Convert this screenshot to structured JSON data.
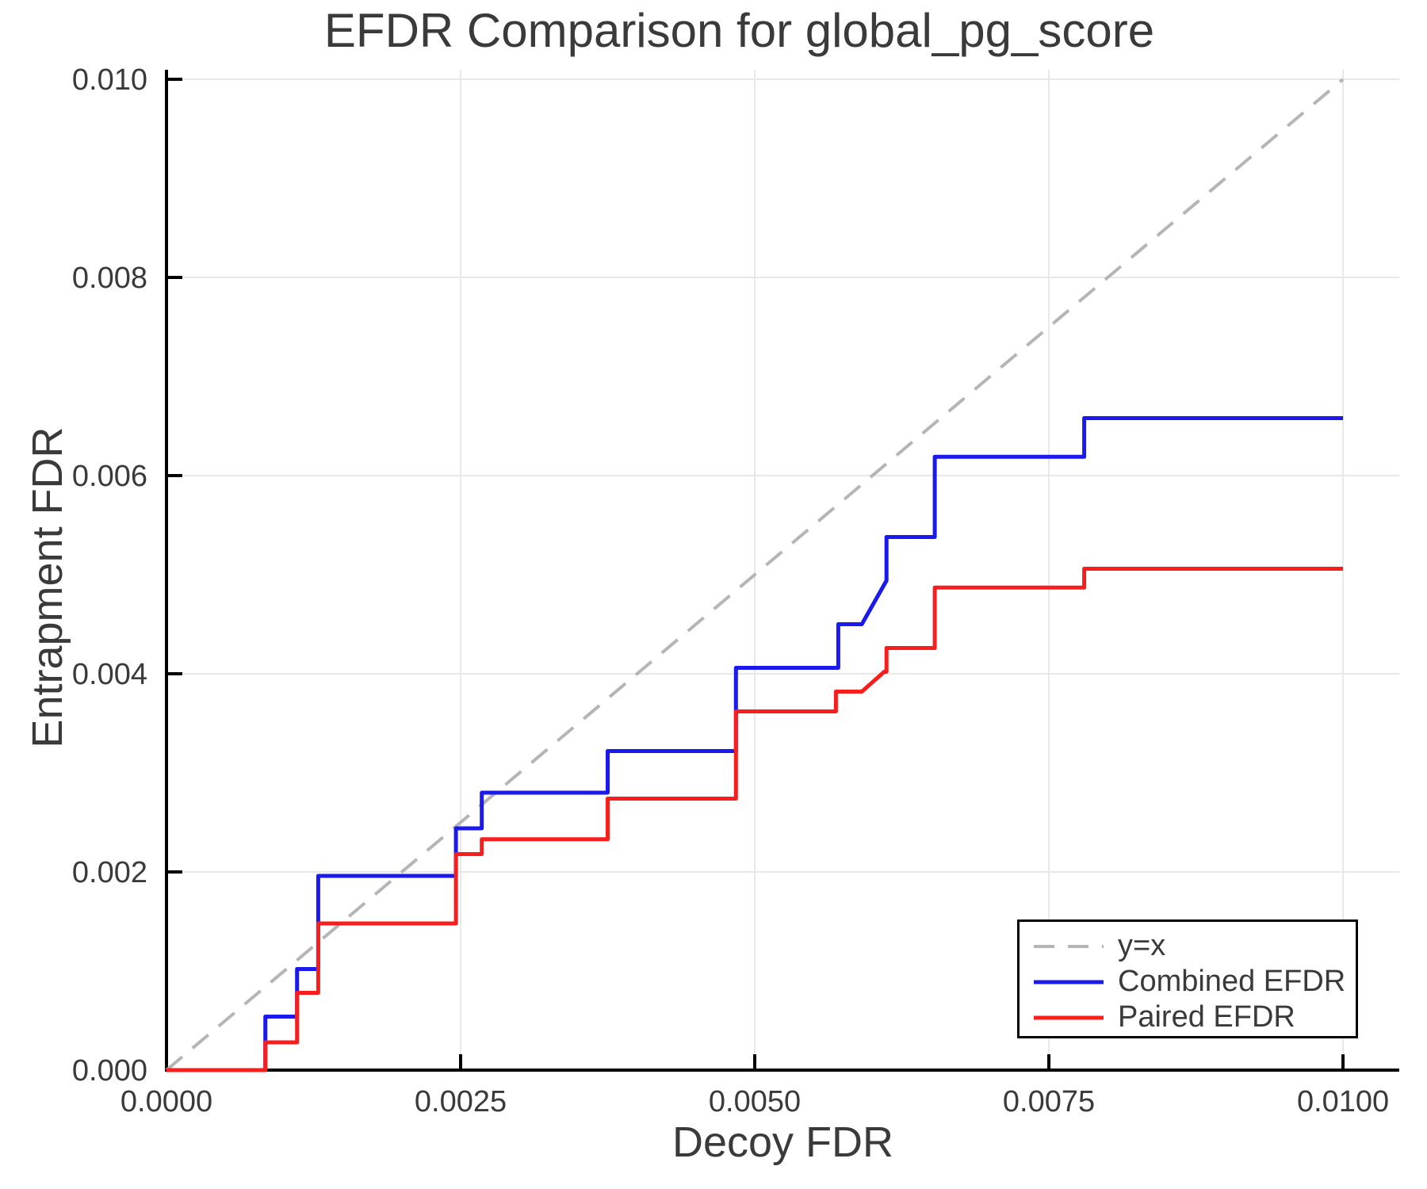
{
  "chart_data": {
    "type": "line",
    "title": "EFDR Comparison for global_pg_score",
    "xlabel": "Decoy FDR",
    "ylabel": "Entrapment FDR",
    "xlim": [
      0,
      0.010478
    ],
    "ylim": [
      0,
      0.010096
    ],
    "grid": true,
    "x_ticks": {
      "values": [
        0.0,
        0.0025,
        0.005,
        0.0075,
        0.01
      ],
      "labels": [
        "0.0000",
        "0.0025",
        "0.0050",
        "0.0075",
        "0.0100"
      ]
    },
    "y_ticks": {
      "values": [
        0.0,
        0.002,
        0.004,
        0.006,
        0.008,
        0.01
      ],
      "labels": [
        "0.000",
        "0.002",
        "0.004",
        "0.006",
        "0.008",
        "0.010"
      ]
    },
    "colors": {
      "grid": "#e8e8e8",
      "axis": "#000000",
      "text": "#3a3a3a",
      "background": "#ffffff"
    },
    "legend": {
      "position": "bottom-right",
      "entries": [
        {
          "label": "y=x",
          "color": "#b5b5b5",
          "dash": true
        },
        {
          "label": "Combined EFDR",
          "color": "#1a1aee",
          "dash": false
        },
        {
          "label": "Paired EFDR",
          "color": "#f81e1e",
          "dash": false
        }
      ]
    },
    "series": [
      {
        "name": "y=x",
        "color": "#b5b5b5",
        "style": "dashed",
        "width": 4,
        "points": [
          [
            0.0,
            0.0
          ],
          [
            0.01,
            0.01
          ]
        ]
      },
      {
        "name": "Combined EFDR",
        "color": "#1a1aee",
        "style": "solid",
        "width": 5,
        "points": [
          [
            0.0,
            0.0
          ],
          [
            0.00084,
            0.0
          ],
          [
            0.00084,
            0.00054
          ],
          [
            0.00111,
            0.00054
          ],
          [
            0.00111,
            0.00102
          ],
          [
            0.00129,
            0.00102
          ],
          [
            0.00129,
            0.00196
          ],
          [
            0.00246,
            0.00196
          ],
          [
            0.00246,
            0.00244
          ],
          [
            0.00268,
            0.00244
          ],
          [
            0.00268,
            0.0028
          ],
          [
            0.00375,
            0.0028
          ],
          [
            0.00375,
            0.00322
          ],
          [
            0.00484,
            0.00322
          ],
          [
            0.00484,
            0.00406
          ],
          [
            0.00571,
            0.00406
          ],
          [
            0.00571,
            0.0045
          ],
          [
            0.00591,
            0.0045
          ],
          [
            0.00612,
            0.00494
          ],
          [
            0.00612,
            0.00538
          ],
          [
            0.00653,
            0.00538
          ],
          [
            0.00653,
            0.00619
          ],
          [
            0.0078,
            0.00619
          ],
          [
            0.0078,
            0.00658
          ],
          [
            0.01,
            0.00658
          ]
        ]
      },
      {
        "name": "Paired EFDR",
        "color": "#f81e1e",
        "style": "solid",
        "width": 5,
        "points": [
          [
            0.0,
            0.0
          ],
          [
            0.00084,
            0.0
          ],
          [
            0.00084,
            0.00028
          ],
          [
            0.00111,
            0.00028
          ],
          [
            0.00111,
            0.00078
          ],
          [
            0.00129,
            0.00078
          ],
          [
            0.00129,
            0.00148
          ],
          [
            0.00246,
            0.00148
          ],
          [
            0.00246,
            0.00218
          ],
          [
            0.00268,
            0.00218
          ],
          [
            0.00268,
            0.00233
          ],
          [
            0.00375,
            0.00233
          ],
          [
            0.00375,
            0.00274
          ],
          [
            0.00484,
            0.00274
          ],
          [
            0.00484,
            0.00362
          ],
          [
            0.00569,
            0.00362
          ],
          [
            0.00569,
            0.00382
          ],
          [
            0.00591,
            0.00382
          ],
          [
            0.0061,
            0.00402
          ],
          [
            0.00612,
            0.00402
          ],
          [
            0.00612,
            0.00426
          ],
          [
            0.00653,
            0.00426
          ],
          [
            0.00653,
            0.00487
          ],
          [
            0.0078,
            0.00487
          ],
          [
            0.0078,
            0.00506
          ],
          [
            0.01,
            0.00506
          ]
        ]
      }
    ]
  }
}
